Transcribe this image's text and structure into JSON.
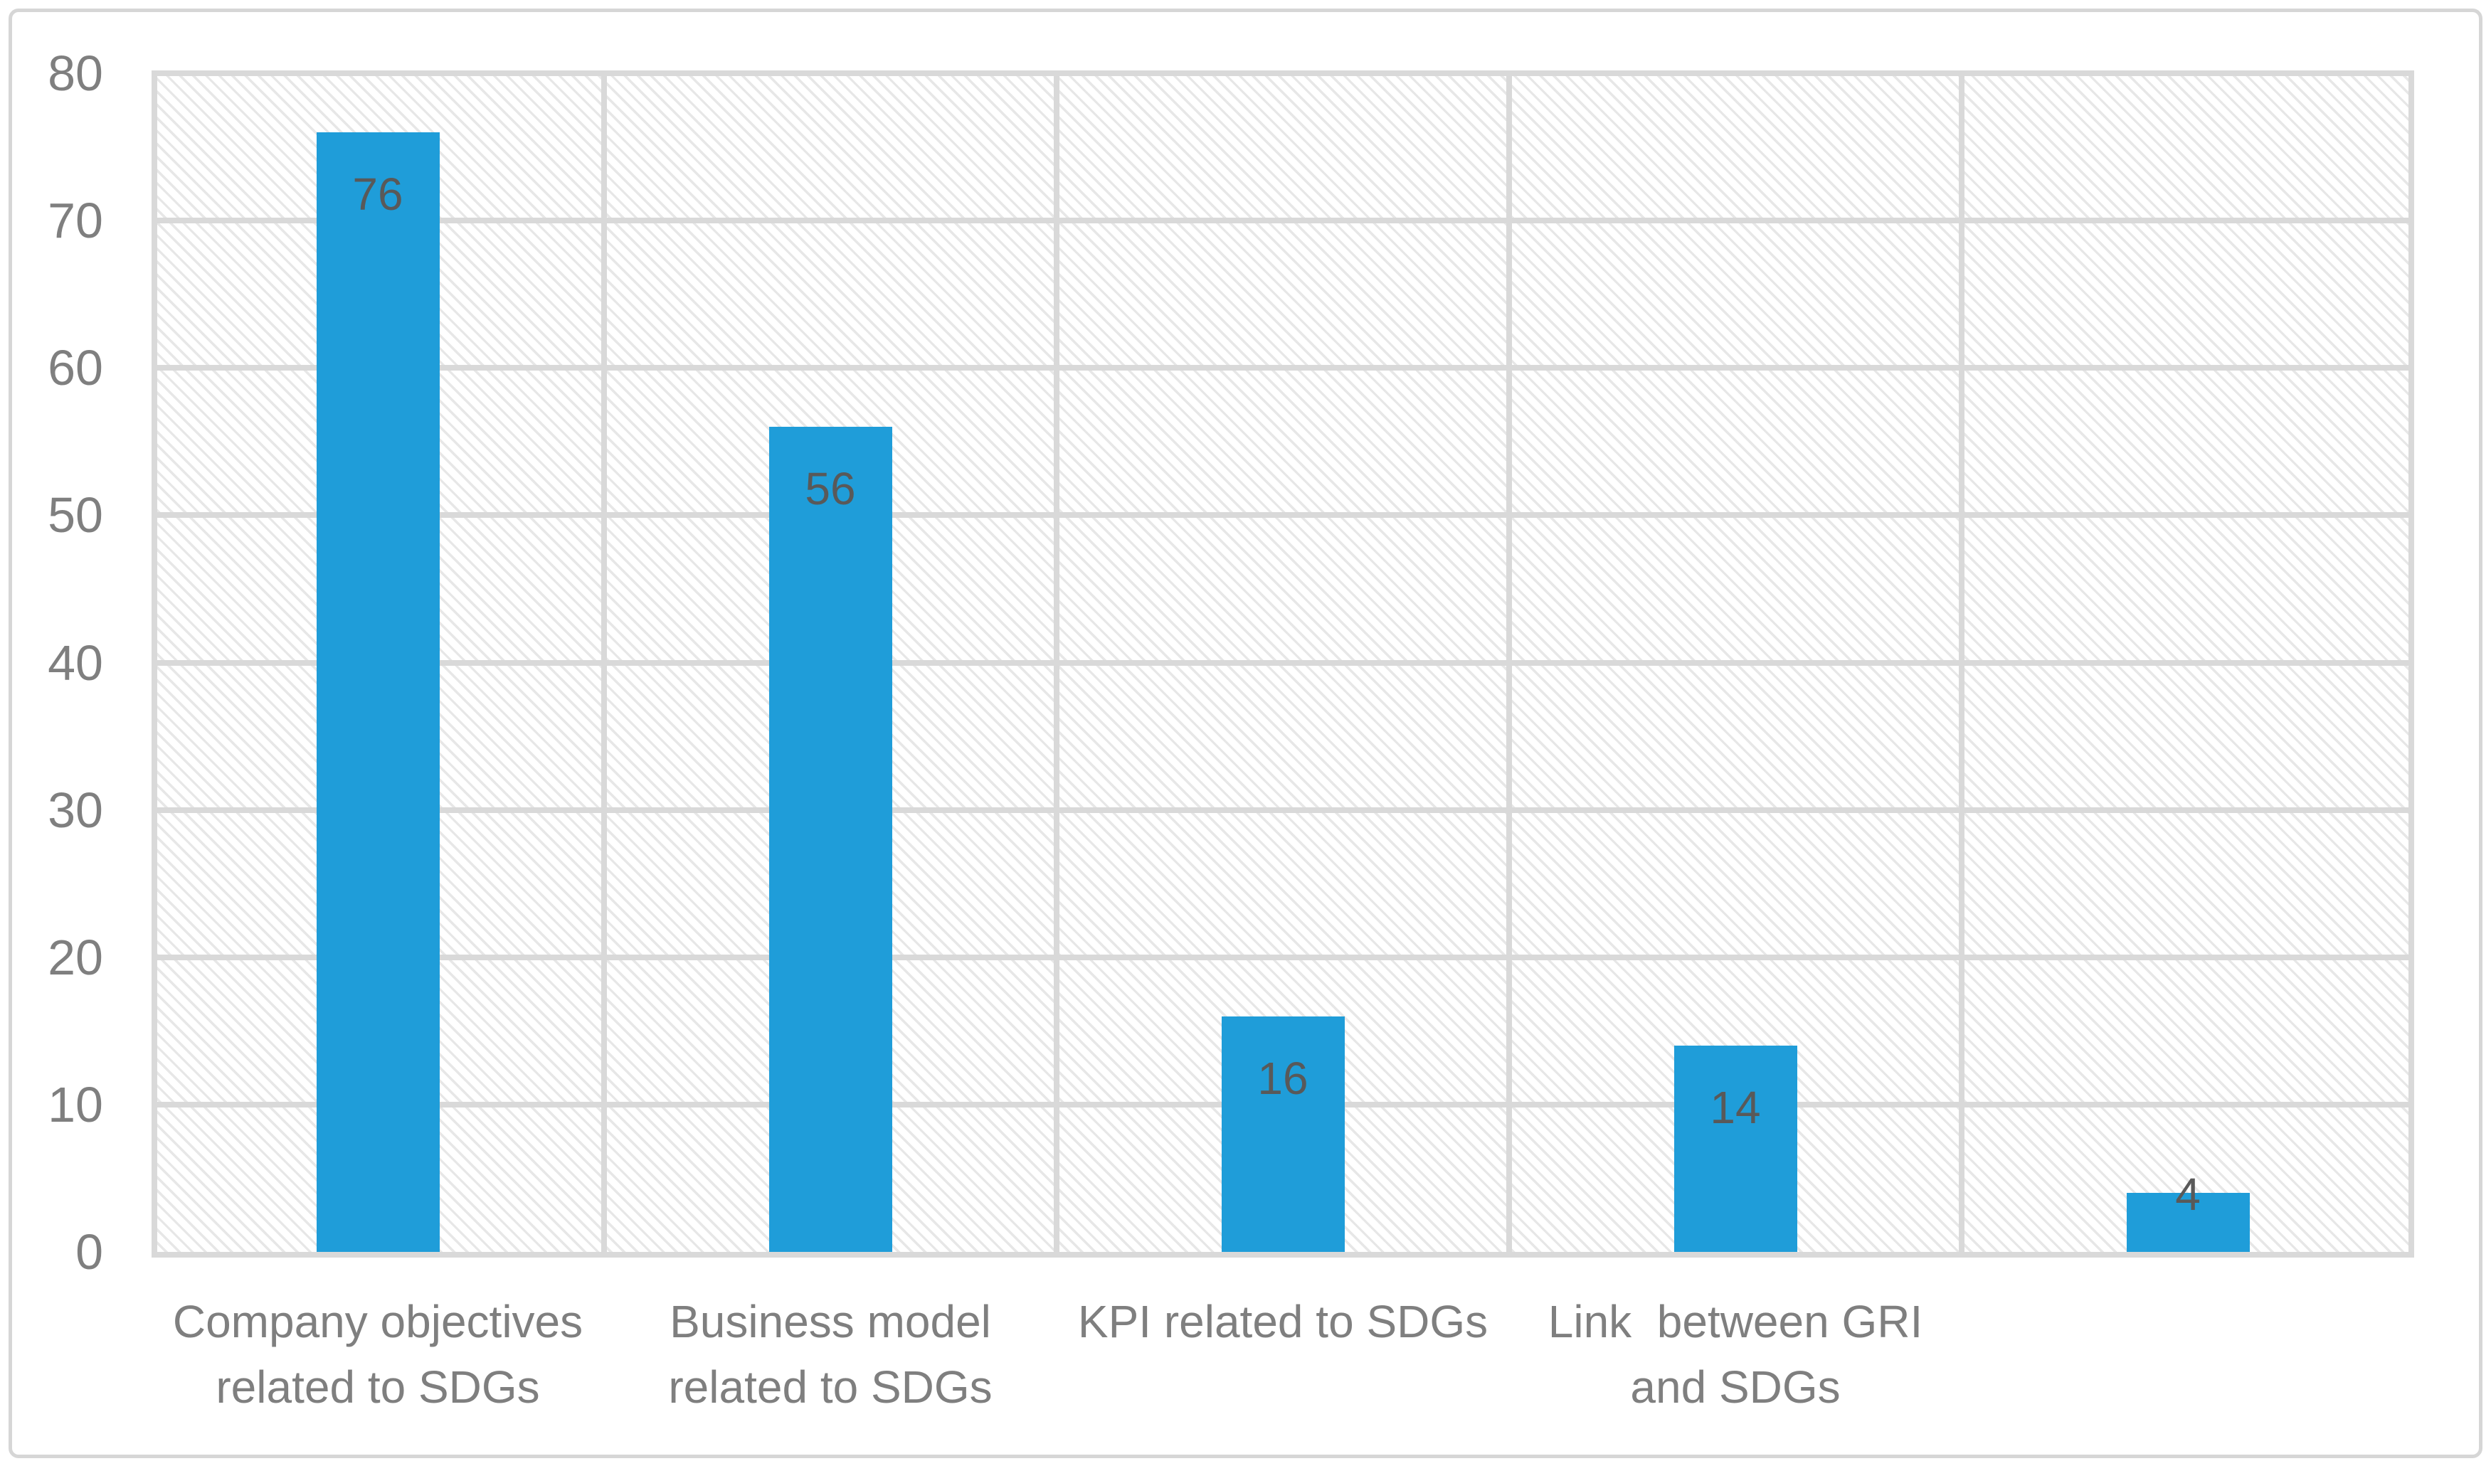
{
  "chart_data": {
    "type": "bar",
    "title": "",
    "categories": [
      "Company objectives\nrelated to SDGs",
      "Business model\nrelated to SDGs",
      "KPI related to SDGs",
      "Link  between GRI\nand SDGs",
      ""
    ],
    "values": [
      76,
      56,
      16,
      14,
      4
    ],
    "data_labels": [
      "76",
      "56",
      "16",
      "14",
      "4"
    ],
    "ylim": [
      0,
      80
    ],
    "ytick_step": 10,
    "ytick_labels": [
      "0",
      "10",
      "20",
      "30",
      "40",
      "50",
      "60",
      "70",
      "80"
    ],
    "xlabel": "",
    "ylabel": "",
    "legend": "none",
    "grid_horizontal": true,
    "grid_vertical": true,
    "plot_background": "light-diagonal-hatch",
    "colors": {
      "bar_fill": "#1f9dd9",
      "gridline": "#d9d9d9",
      "hatch_stripe": "#e7e7e7",
      "data_label": "#595959",
      "axis_text": "#7f7f7f",
      "frame_border": "#d6d6d6",
      "background": "#ffffff"
    }
  }
}
